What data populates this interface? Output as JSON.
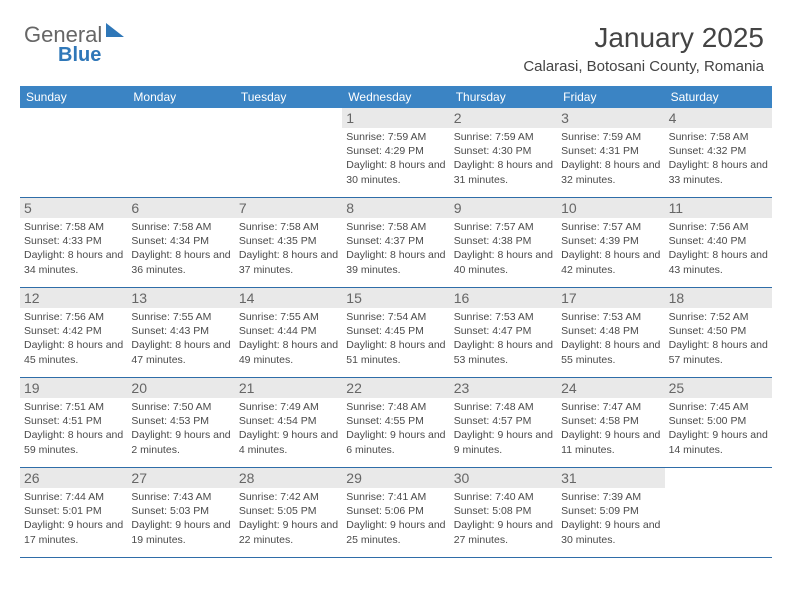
{
  "logo": {
    "part1": "General",
    "part2": "Blue"
  },
  "header": {
    "title": "January 2025",
    "location": "Calarasi, Botosani County, Romania"
  },
  "colors": {
    "header_bg": "#3b84c4",
    "header_fg": "#ffffff",
    "rule": "#2f6da8",
    "daynum_bg": "#e9e9e9",
    "text": "#4a4a4a"
  },
  "dayNames": [
    "Sunday",
    "Monday",
    "Tuesday",
    "Wednesday",
    "Thursday",
    "Friday",
    "Saturday"
  ],
  "weeks": [
    [
      null,
      null,
      null,
      {
        "n": "1",
        "sr": "7:59 AM",
        "ss": "4:29 PM",
        "dl": "8 hours and 30 minutes."
      },
      {
        "n": "2",
        "sr": "7:59 AM",
        "ss": "4:30 PM",
        "dl": "8 hours and 31 minutes."
      },
      {
        "n": "3",
        "sr": "7:59 AM",
        "ss": "4:31 PM",
        "dl": "8 hours and 32 minutes."
      },
      {
        "n": "4",
        "sr": "7:58 AM",
        "ss": "4:32 PM",
        "dl": "8 hours and 33 minutes."
      }
    ],
    [
      {
        "n": "5",
        "sr": "7:58 AM",
        "ss": "4:33 PM",
        "dl": "8 hours and 34 minutes."
      },
      {
        "n": "6",
        "sr": "7:58 AM",
        "ss": "4:34 PM",
        "dl": "8 hours and 36 minutes."
      },
      {
        "n": "7",
        "sr": "7:58 AM",
        "ss": "4:35 PM",
        "dl": "8 hours and 37 minutes."
      },
      {
        "n": "8",
        "sr": "7:58 AM",
        "ss": "4:37 PM",
        "dl": "8 hours and 39 minutes."
      },
      {
        "n": "9",
        "sr": "7:57 AM",
        "ss": "4:38 PM",
        "dl": "8 hours and 40 minutes."
      },
      {
        "n": "10",
        "sr": "7:57 AM",
        "ss": "4:39 PM",
        "dl": "8 hours and 42 minutes."
      },
      {
        "n": "11",
        "sr": "7:56 AM",
        "ss": "4:40 PM",
        "dl": "8 hours and 43 minutes."
      }
    ],
    [
      {
        "n": "12",
        "sr": "7:56 AM",
        "ss": "4:42 PM",
        "dl": "8 hours and 45 minutes."
      },
      {
        "n": "13",
        "sr": "7:55 AM",
        "ss": "4:43 PM",
        "dl": "8 hours and 47 minutes."
      },
      {
        "n": "14",
        "sr": "7:55 AM",
        "ss": "4:44 PM",
        "dl": "8 hours and 49 minutes."
      },
      {
        "n": "15",
        "sr": "7:54 AM",
        "ss": "4:45 PM",
        "dl": "8 hours and 51 minutes."
      },
      {
        "n": "16",
        "sr": "7:53 AM",
        "ss": "4:47 PM",
        "dl": "8 hours and 53 minutes."
      },
      {
        "n": "17",
        "sr": "7:53 AM",
        "ss": "4:48 PM",
        "dl": "8 hours and 55 minutes."
      },
      {
        "n": "18",
        "sr": "7:52 AM",
        "ss": "4:50 PM",
        "dl": "8 hours and 57 minutes."
      }
    ],
    [
      {
        "n": "19",
        "sr": "7:51 AM",
        "ss": "4:51 PM",
        "dl": "8 hours and 59 minutes."
      },
      {
        "n": "20",
        "sr": "7:50 AM",
        "ss": "4:53 PM",
        "dl": "9 hours and 2 minutes."
      },
      {
        "n": "21",
        "sr": "7:49 AM",
        "ss": "4:54 PM",
        "dl": "9 hours and 4 minutes."
      },
      {
        "n": "22",
        "sr": "7:48 AM",
        "ss": "4:55 PM",
        "dl": "9 hours and 6 minutes."
      },
      {
        "n": "23",
        "sr": "7:48 AM",
        "ss": "4:57 PM",
        "dl": "9 hours and 9 minutes."
      },
      {
        "n": "24",
        "sr": "7:47 AM",
        "ss": "4:58 PM",
        "dl": "9 hours and 11 minutes."
      },
      {
        "n": "25",
        "sr": "7:45 AM",
        "ss": "5:00 PM",
        "dl": "9 hours and 14 minutes."
      }
    ],
    [
      {
        "n": "26",
        "sr": "7:44 AM",
        "ss": "5:01 PM",
        "dl": "9 hours and 17 minutes."
      },
      {
        "n": "27",
        "sr": "7:43 AM",
        "ss": "5:03 PM",
        "dl": "9 hours and 19 minutes."
      },
      {
        "n": "28",
        "sr": "7:42 AM",
        "ss": "5:05 PM",
        "dl": "9 hours and 22 minutes."
      },
      {
        "n": "29",
        "sr": "7:41 AM",
        "ss": "5:06 PM",
        "dl": "9 hours and 25 minutes."
      },
      {
        "n": "30",
        "sr": "7:40 AM",
        "ss": "5:08 PM",
        "dl": "9 hours and 27 minutes."
      },
      {
        "n": "31",
        "sr": "7:39 AM",
        "ss": "5:09 PM",
        "dl": "9 hours and 30 minutes."
      },
      null
    ]
  ],
  "labels": {
    "sunrise": "Sunrise:",
    "sunset": "Sunset:",
    "daylight": "Daylight:"
  }
}
